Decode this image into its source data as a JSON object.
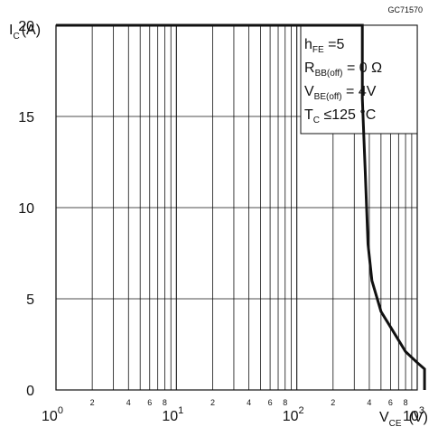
{
  "figure_id": "GC71570",
  "chart_data": {
    "type": "line",
    "xscale": "log",
    "xlim": [
      1,
      1000
    ],
    "ylim": [
      0,
      20
    ],
    "grid": true,
    "ylabel": {
      "main": "I",
      "sub": "C",
      "unit": "(A)"
    },
    "xlabel": {
      "main": "V",
      "sub": "CE",
      "unit": "(V)"
    },
    "yticks": [
      0,
      5,
      10,
      15,
      20
    ],
    "xtick_decades": [
      {
        "value": 1,
        "base": "10",
        "exp": "0"
      },
      {
        "value": 10,
        "base": "10",
        "exp": "1"
      },
      {
        "value": 100,
        "base": "10",
        "exp": "2"
      },
      {
        "value": 1000,
        "base": "10",
        "exp": "3"
      }
    ],
    "xtick_minor_labels": [
      "2",
      "4",
      "6",
      "8"
    ],
    "series": [
      {
        "x": [
          1,
          350,
          350,
          370,
          390,
          420,
          500,
          620,
          800,
          1000,
          1150,
          1150
        ],
        "y": [
          20,
          20,
          16,
          12,
          8,
          6,
          4.3,
          3.3,
          2.1,
          1.5,
          1.15,
          0
        ]
      }
    ],
    "annotations": [
      {
        "main": "h",
        "sub": "FE",
        "rest": " =5"
      },
      {
        "main": "R",
        "sub": "BB(off)",
        "rest": " = 0 Ω"
      },
      {
        "main": "V",
        "sub": "BE(off)",
        "rest": " = 4V"
      },
      {
        "main": "T",
        "sub": "C",
        "rest": " ≤125 °C"
      }
    ]
  }
}
